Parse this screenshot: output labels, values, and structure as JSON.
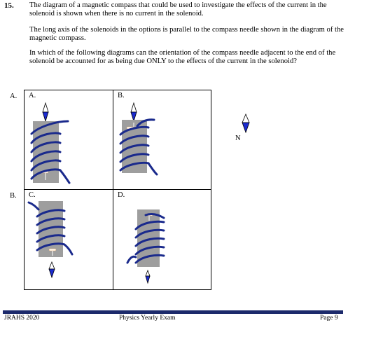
{
  "question": {
    "number": "15.",
    "paragraphs": [
      "The diagram of a magnetic compass that could be used to investigate the effects of the current in the solenoid is shown when there is no current in the solenoid.",
      "The long axis of the solenoids in the options is parallel to the compass needle shown in the diagram of the magnetic compass.",
      "In which of the following diagrams can the orientation of the compass needle adjacent to the end of the solenoid be accounted for as being due ONLY to the effects of the current in the solenoid?"
    ]
  },
  "options": {
    "row1_label": "A.",
    "row2_label": "B.",
    "cells": [
      {
        "label": "A.",
        "needle": "north-up",
        "compass_position": "top"
      },
      {
        "label": "B.",
        "needle": "north-down",
        "compass_position": "top"
      },
      {
        "label": "C.",
        "needle": "north-down",
        "compass_position": "bottom"
      },
      {
        "label": "D.",
        "needle": "north-up",
        "compass_position": "bottom"
      }
    ]
  },
  "reference_compass": {
    "label": "N",
    "needle": "north-down"
  },
  "colors": {
    "coil": "#1a2a8c",
    "core": "#9e9e9e",
    "needle_blue": "#1b2bd0",
    "footer_rule": "#1c2a6b"
  },
  "footer": {
    "left": "JRAHS 2020",
    "center": "Physics Yearly Exam",
    "right": "Page 9"
  }
}
